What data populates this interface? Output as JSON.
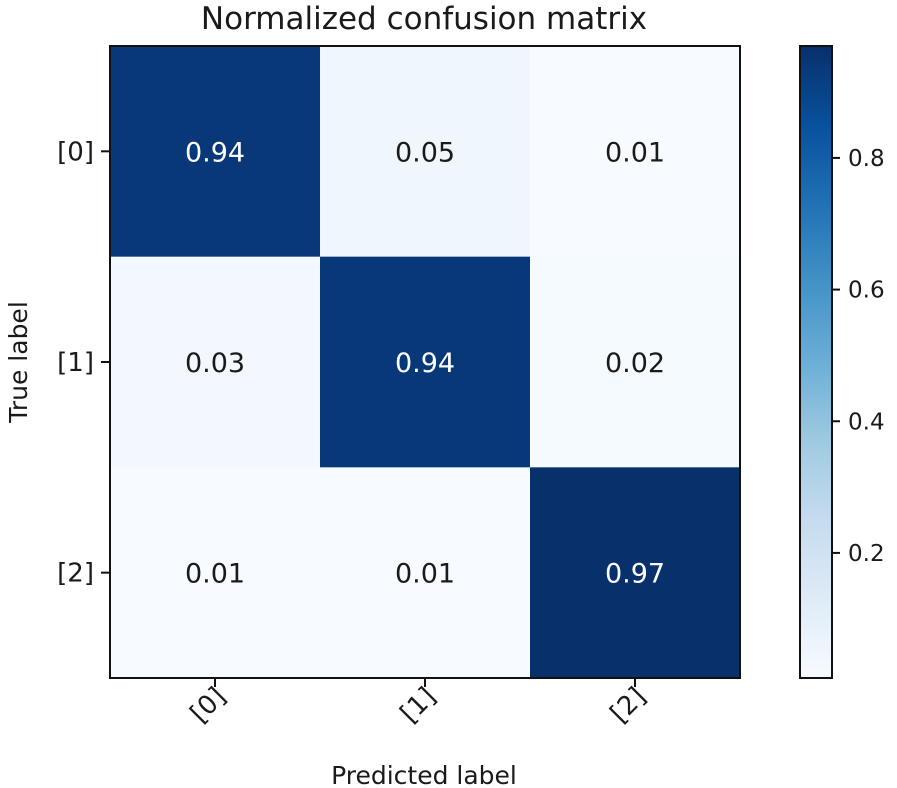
{
  "chart_data": {
    "type": "heatmap",
    "title": "Normalized confusion matrix",
    "xlabel": "Predicted label",
    "ylabel": "True label",
    "x_categories": [
      "[0]",
      "[1]",
      "[2]"
    ],
    "y_categories": [
      "[0]",
      "[1]",
      "[2]"
    ],
    "matrix": [
      [
        0.94,
        0.05,
        0.01
      ],
      [
        0.03,
        0.94,
        0.02
      ],
      [
        0.01,
        0.01,
        0.97
      ]
    ],
    "cell_labels": [
      [
        "0.94",
        "0.05",
        "0.01"
      ],
      [
        "0.03",
        "0.94",
        "0.02"
      ],
      [
        "0.01",
        "0.01",
        "0.97"
      ]
    ],
    "colormap": "Blues",
    "colorbar": {
      "range": [
        0.01,
        0.97
      ],
      "ticks": [
        0.2,
        0.4,
        0.6,
        0.8
      ],
      "tick_labels": [
        "0.2",
        "0.4",
        "0.6",
        "0.8"
      ]
    },
    "x_tick_rotation_deg": 45,
    "grid": false
  }
}
